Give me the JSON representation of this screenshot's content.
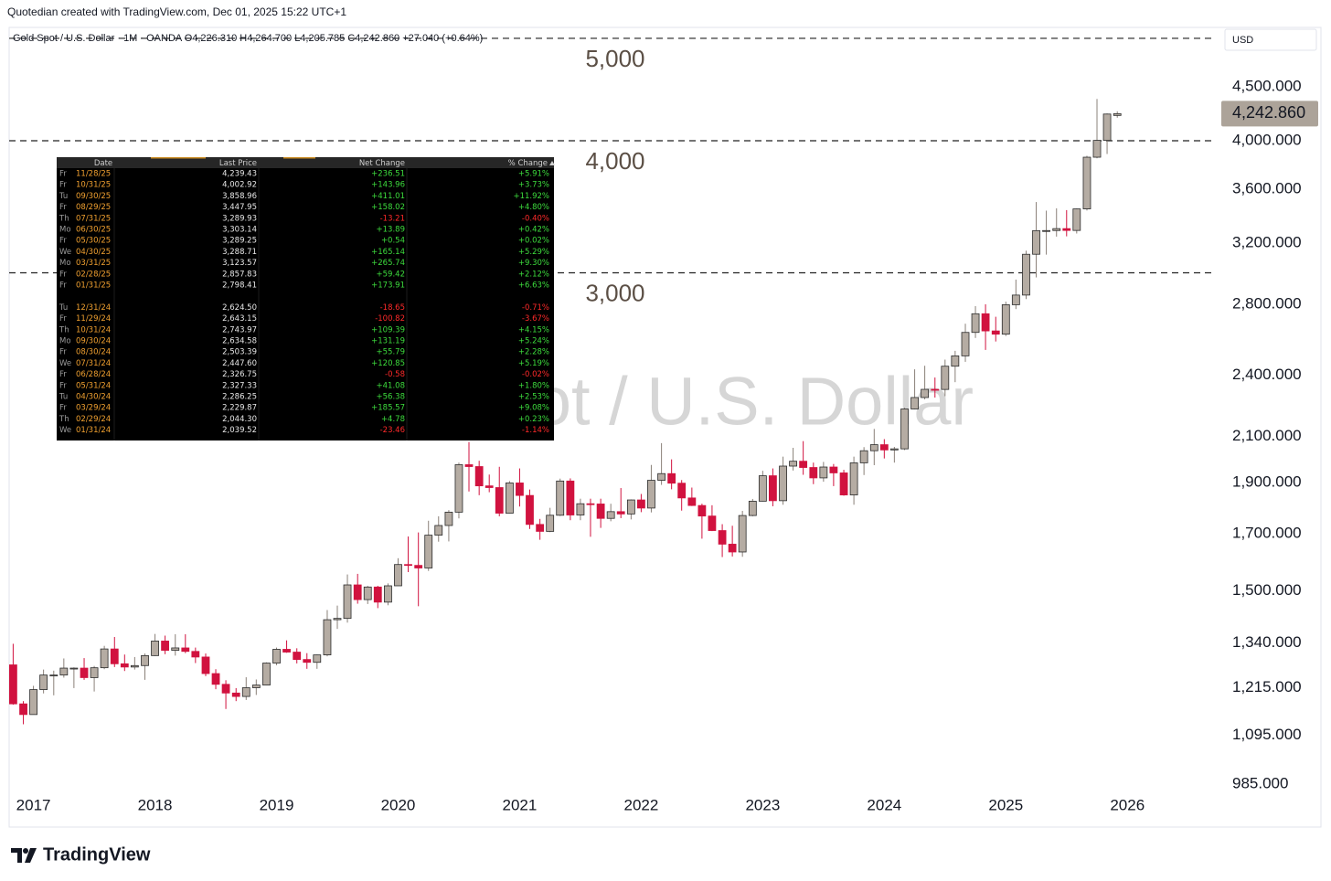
{
  "header": "Quotedian created with TradingView.com, Dec 01, 2025 15:22 UTC+1",
  "brand": "TradingView",
  "chart_data": {
    "type": "candlestick",
    "symbol": "Gold Spot / U.S. Dollar",
    "interval_exchange": "· 1M · OANDA",
    "ohlc_label": "O4,226.310 H4,264.700 L4,205.785 C4,242.860 +27.040 (+0.64%)",
    "currency": "USD",
    "last_price_label": "4,242.860",
    "log_scale": true,
    "grid": false,
    "up_color": "#b5aca3",
    "up_outline": "#2b2b2b",
    "down_color": "#d1123f",
    "xlim": [
      2016.8,
      2026.69
    ],
    "xticks": [
      2017,
      2018,
      2019,
      2020,
      2021,
      2022,
      2023,
      2024,
      2025,
      2026
    ],
    "ylim": [
      977,
      5120
    ],
    "yticks": [
      {
        "value": 985,
        "label": "985.000"
      },
      {
        "value": 1095,
        "label": "1,095.000"
      },
      {
        "value": 1215,
        "label": "1,215.000"
      },
      {
        "value": 1340,
        "label": "1,340.000"
      },
      {
        "value": 1500,
        "label": "1,500.000"
      },
      {
        "value": 1700,
        "label": "1,700.000"
      },
      {
        "value": 1900,
        "label": "1,900.000"
      },
      {
        "value": 2100,
        "label": "2,100.000"
      },
      {
        "value": 2400,
        "label": "2,400.000"
      },
      {
        "value": 2800,
        "label": "2,800.000"
      },
      {
        "value": 3200,
        "label": "3,200.000"
      },
      {
        "value": 3600,
        "label": "3,600.000"
      },
      {
        "value": 4000,
        "label": "4,000.000"
      },
      {
        "value": 4500,
        "label": "4,500.000"
      }
    ],
    "hlines": [
      {
        "value": 5000,
        "label": "5,000"
      },
      {
        "value": 4000,
        "label": "4,000"
      },
      {
        "value": 3000,
        "label": "3,000"
      }
    ],
    "x": [
      2016.833,
      2016.917,
      2017,
      2017.083,
      2017.167,
      2017.25,
      2017.333,
      2017.417,
      2017.5,
      2017.583,
      2017.667,
      2017.75,
      2017.833,
      2017.917,
      2018,
      2018.083,
      2018.167,
      2018.25,
      2018.333,
      2018.417,
      2018.5,
      2018.583,
      2018.667,
      2018.75,
      2018.833,
      2018.917,
      2019,
      2019.083,
      2019.167,
      2019.25,
      2019.333,
      2019.417,
      2019.5,
      2019.583,
      2019.667,
      2019.75,
      2019.833,
      2019.917,
      2020,
      2020.083,
      2020.167,
      2020.25,
      2020.333,
      2020.417,
      2020.5,
      2020.583,
      2020.667,
      2020.75,
      2020.833,
      2020.917,
      2021,
      2021.083,
      2021.167,
      2021.25,
      2021.333,
      2021.417,
      2021.5,
      2021.583,
      2021.667,
      2021.75,
      2021.833,
      2021.917,
      2022,
      2022.083,
      2022.167,
      2022.25,
      2022.333,
      2022.417,
      2022.5,
      2022.583,
      2022.667,
      2022.75,
      2022.833,
      2022.917,
      2023,
      2023.083,
      2023.167,
      2023.25,
      2023.333,
      2023.417,
      2023.5,
      2023.583,
      2023.667,
      2023.75,
      2023.833,
      2023.917,
      2024,
      2024.083,
      2024.167,
      2024.25,
      2024.333,
      2024.417,
      2024.5,
      2024.583,
      2024.667,
      2024.75,
      2024.833,
      2024.917,
      2025,
      2025.083,
      2025.167,
      2025.25,
      2025.333,
      2025.417,
      2025.5,
      2025.583,
      2025.667,
      2025.75,
      2025.833,
      2025.917
    ],
    "candles": [
      [
        1277,
        1337,
        1171,
        1173
      ],
      [
        1173,
        1180,
        1122,
        1146
      ],
      [
        1146,
        1220,
        1146,
        1210
      ],
      [
        1210,
        1264,
        1200,
        1249
      ],
      [
        1249,
        1261,
        1195,
        1249
      ],
      [
        1249,
        1295,
        1242,
        1268
      ],
      [
        1268,
        1270,
        1214,
        1268
      ],
      [
        1268,
        1296,
        1236,
        1242
      ],
      [
        1242,
        1274,
        1205,
        1269
      ],
      [
        1269,
        1331,
        1265,
        1322
      ],
      [
        1322,
        1357,
        1271,
        1280
      ],
      [
        1280,
        1306,
        1260,
        1271
      ],
      [
        1271,
        1299,
        1264,
        1275
      ],
      [
        1275,
        1309,
        1236,
        1303
      ],
      [
        1303,
        1366,
        1302,
        1345
      ],
      [
        1345,
        1361,
        1307,
        1318
      ],
      [
        1318,
        1365,
        1303,
        1325
      ],
      [
        1325,
        1365,
        1310,
        1315
      ],
      [
        1315,
        1326,
        1282,
        1299
      ],
      [
        1299,
        1309,
        1246,
        1253
      ],
      [
        1253,
        1265,
        1211,
        1224
      ],
      [
        1224,
        1235,
        1160,
        1201
      ],
      [
        1201,
        1214,
        1180,
        1192
      ],
      [
        1192,
        1243,
        1183,
        1215
      ],
      [
        1215,
        1237,
        1196,
        1222
      ],
      [
        1222,
        1284,
        1221,
        1282
      ],
      [
        1282,
        1326,
        1276,
        1321
      ],
      [
        1321,
        1347,
        1311,
        1313
      ],
      [
        1313,
        1324,
        1281,
        1292
      ],
      [
        1292,
        1310,
        1266,
        1284
      ],
      [
        1284,
        1306,
        1266,
        1305
      ],
      [
        1305,
        1439,
        1301,
        1409
      ],
      [
        1409,
        1453,
        1381,
        1413
      ],
      [
        1413,
        1555,
        1400,
        1520
      ],
      [
        1520,
        1557,
        1459,
        1472
      ],
      [
        1472,
        1517,
        1458,
        1513
      ],
      [
        1513,
        1517,
        1445,
        1464
      ],
      [
        1464,
        1525,
        1454,
        1517
      ],
      [
        1517,
        1611,
        1517,
        1589
      ],
      [
        1589,
        1689,
        1563,
        1586
      ],
      [
        1586,
        1704,
        1451,
        1577
      ],
      [
        1577,
        1748,
        1567,
        1694
      ],
      [
        1694,
        1765,
        1670,
        1730
      ],
      [
        1730,
        1789,
        1671,
        1781
      ],
      [
        1781,
        1984,
        1757,
        1975
      ],
      [
        1975,
        2075,
        1863,
        1967
      ],
      [
        1967,
        1992,
        1848,
        1886
      ],
      [
        1886,
        1933,
        1860,
        1879
      ],
      [
        1879,
        1966,
        1765,
        1777
      ],
      [
        1777,
        1906,
        1776,
        1898
      ],
      [
        1898,
        1959,
        1803,
        1847
      ],
      [
        1847,
        1871,
        1717,
        1734
      ],
      [
        1734,
        1755,
        1677,
        1708
      ],
      [
        1708,
        1798,
        1705,
        1769
      ],
      [
        1769,
        1916,
        1766,
        1906
      ],
      [
        1906,
        1917,
        1750,
        1770
      ],
      [
        1770,
        1834,
        1750,
        1814
      ],
      [
        1814,
        1834,
        1688,
        1813
      ],
      [
        1813,
        1834,
        1721,
        1757
      ],
      [
        1757,
        1814,
        1746,
        1783
      ],
      [
        1783,
        1877,
        1758,
        1774
      ],
      [
        1774,
        1831,
        1753,
        1829
      ],
      [
        1829,
        1853,
        1781,
        1797
      ],
      [
        1797,
        1974,
        1780,
        1909
      ],
      [
        1909,
        2070,
        1890,
        1937
      ],
      [
        1937,
        1998,
        1872,
        1897
      ],
      [
        1897,
        1910,
        1787,
        1837
      ],
      [
        1837,
        1879,
        1805,
        1807
      ],
      [
        1807,
        1814,
        1681,
        1766
      ],
      [
        1766,
        1808,
        1709,
        1711
      ],
      [
        1711,
        1735,
        1615,
        1661
      ],
      [
        1661,
        1729,
        1617,
        1633
      ],
      [
        1633,
        1786,
        1616,
        1768
      ],
      [
        1768,
        1833,
        1765,
        1824
      ],
      [
        1824,
        1949,
        1823,
        1928
      ],
      [
        1928,
        1959,
        1804,
        1826
      ],
      [
        1826,
        2010,
        1810,
        1969
      ],
      [
        1969,
        2049,
        1950,
        1990
      ],
      [
        1990,
        2079,
        1932,
        1963
      ],
      [
        1963,
        1984,
        1893,
        1919
      ],
      [
        1919,
        1987,
        1903,
        1965
      ],
      [
        1965,
        1978,
        1885,
        1940
      ],
      [
        1940,
        1953,
        1846,
        1849
      ],
      [
        1849,
        2010,
        1810,
        1983
      ],
      [
        1983,
        2052,
        1931,
        2036
      ],
      [
        2036,
        2135,
        1973,
        2063
      ],
      [
        2063,
        2088,
        2002,
        2039.52
      ],
      [
        2039.52,
        2053,
        1984,
        2044.3
      ],
      [
        2044.3,
        2236,
        2039,
        2229.87
      ],
      [
        2229.87,
        2431,
        2228,
        2286.25
      ],
      [
        2286.25,
        2450,
        2277,
        2327.33
      ],
      [
        2327.33,
        2388,
        2286,
        2326.75
      ],
      [
        2326.75,
        2483,
        2293,
        2447.6
      ],
      [
        2447.6,
        2531,
        2364,
        2503.39
      ],
      [
        2503.39,
        2685,
        2471,
        2634.58
      ],
      [
        2634.58,
        2790,
        2603,
        2743.97
      ],
      [
        2743.97,
        2801,
        2536,
        2643.15
      ],
      [
        2643.15,
        2726,
        2583,
        2624.5
      ],
      [
        2624.5,
        2817,
        2614,
        2798.41
      ],
      [
        2798.41,
        2956,
        2772,
        2857.83
      ],
      [
        2857.83,
        3148,
        2833,
        3123.57
      ],
      [
        3123.57,
        3500,
        2970,
        3288.71
      ],
      [
        3288.71,
        3435,
        3121,
        3289.25
      ],
      [
        3289.25,
        3452,
        3246,
        3303.14
      ],
      [
        3303.14,
        3439,
        3248,
        3289.93
      ],
      [
        3289.93,
        3451,
        3268,
        3447.95
      ],
      [
        3447.95,
        3871,
        3436,
        3858.96
      ],
      [
        3858.96,
        4381,
        3850,
        4002.92
      ],
      [
        4002.92,
        4245,
        3886,
        4239.43
      ],
      [
        4226.31,
        4264.7,
        4205.785,
        4242.86
      ]
    ]
  },
  "table": {
    "columns": [
      "Date",
      "Last Price",
      "Net Change",
      "% Change"
    ],
    "groups": [
      [
        [
          "Fr",
          "11/28/25",
          "4,239.43",
          "+236.51",
          "+5.91%"
        ],
        [
          "Fr",
          "10/31/25",
          "4,002.92",
          "+143.96",
          "+3.73%"
        ],
        [
          "Tu",
          "09/30/25",
          "3,858.96",
          "+411.01",
          "+11.92%"
        ],
        [
          "Fr",
          "08/29/25",
          "3,447.95",
          "+158.02",
          "+4.80%"
        ],
        [
          "Th",
          "07/31/25",
          "3,289.93",
          "-13.21",
          "-0.40%"
        ],
        [
          "Mo",
          "06/30/25",
          "3,303.14",
          "+13.89",
          "+0.42%"
        ],
        [
          "Fr",
          "05/30/25",
          "3,289.25",
          "+0.54",
          "+0.02%"
        ],
        [
          "We",
          "04/30/25",
          "3,288.71",
          "+165.14",
          "+5.29%"
        ],
        [
          "Mo",
          "03/31/25",
          "3,123.57",
          "+265.74",
          "+9.30%"
        ],
        [
          "Fr",
          "02/28/25",
          "2,857.83",
          "+59.42",
          "+2.12%"
        ],
        [
          "Fr",
          "01/31/25",
          "2,798.41",
          "+173.91",
          "+6.63%"
        ]
      ],
      [
        [
          "Tu",
          "12/31/24",
          "2,624.50",
          "-18.65",
          "-0.71%"
        ],
        [
          "Fr",
          "11/29/24",
          "2,643.15",
          "-100.82",
          "-3.67%"
        ],
        [
          "Th",
          "10/31/24",
          "2,743.97",
          "+109.39",
          "+4.15%"
        ],
        [
          "Mo",
          "09/30/24",
          "2,634.58",
          "+131.19",
          "+5.24%"
        ],
        [
          "Fr",
          "08/30/24",
          "2,503.39",
          "+55.79",
          "+2.28%"
        ],
        [
          "We",
          "07/31/24",
          "2,447.60",
          "+120.85",
          "+5.19%"
        ],
        [
          "Fr",
          "06/28/24",
          "2,326.75",
          "-0.58",
          "-0.02%"
        ],
        [
          "Fr",
          "05/31/24",
          "2,327.33",
          "+41.08",
          "+1.80%"
        ],
        [
          "Tu",
          "04/30/24",
          "2,286.25",
          "+56.38",
          "+2.53%"
        ],
        [
          "Fr",
          "03/29/24",
          "2,229.87",
          "+185.57",
          "+9.08%"
        ],
        [
          "Th",
          "02/29/24",
          "2,044.30",
          "+4.78",
          "+0.23%"
        ],
        [
          "We",
          "01/31/24",
          "2,039.52",
          "-23.46",
          "-1.14%"
        ]
      ]
    ]
  }
}
